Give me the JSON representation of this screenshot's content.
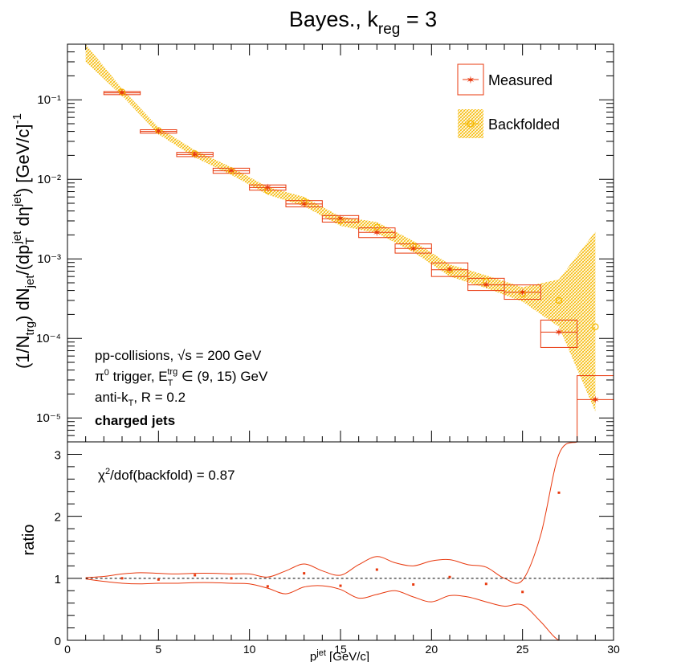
{
  "title": {
    "main": "Bayes., k",
    "sub": "reg",
    "rest": " = 3"
  },
  "y_axis_label": "(1/N_trg) dN_jet/(dp_T^jet dη^jet) [GeV/c]^-1",
  "x_axis_label": "p^jet [GeV/c]",
  "ratio_label": "ratio",
  "legend": [
    {
      "label": "Measured",
      "marker": "star",
      "color": "#e8380d"
    },
    {
      "label": "Backfolded",
      "marker": "circle",
      "color": "#f5b800"
    }
  ],
  "annotations": [
    "pp-collisions, √s = 200 GeV",
    "π0 trigger, E_T^trg ∈ (9, 15) GeV",
    "anti-k_T, R = 0.2",
    "charged jets"
  ],
  "chi2_label": "χ2/dof(backfold) = 0.87",
  "colors": {
    "measured": "#e8380d",
    "backfolded": "#f5b800",
    "axis": "#000000"
  },
  "chart_data": [
    {
      "type": "scatter",
      "panel": "spectrum",
      "title": "Bayes., k_reg = 3",
      "xlabel": "p_T^jet [GeV/c]",
      "ylabel": "(1/N_trg) dN_jet/(dp_T^jet dη^jet) [GeV/c]^-1",
      "xlim": [
        0,
        30
      ],
      "ylim": [
        5e-06,
        0.5
      ],
      "yscale": "log",
      "y_ticks": [
        1e-05,
        0.0001,
        0.001,
        0.01,
        0.1
      ],
      "y_tick_labels": [
        "10⁻⁵",
        "10⁻⁴",
        "10⁻³",
        "10⁻²",
        "10⁻¹"
      ],
      "series": [
        {
          "name": "Measured",
          "x": [
            3,
            5,
            7,
            9,
            11,
            13,
            15,
            17,
            19,
            21,
            23,
            25,
            27,
            29
          ],
          "x_err": [
            1,
            1,
            1,
            1,
            1,
            1,
            1,
            1,
            1,
            1,
            1,
            1,
            1,
            1
          ],
          "y": [
            0.122,
            0.04,
            0.0205,
            0.0128,
            0.0079,
            0.0049,
            0.0032,
            0.00215,
            0.00135,
            0.00073,
            0.00047,
            0.00038,
            0.00012,
            1.7e-05
          ],
          "y_low": [
            0.116,
            0.038,
            0.0193,
            0.0119,
            0.0073,
            0.0045,
            0.0029,
            0.00185,
            0.00118,
            0.0006,
            0.0004,
            0.00031,
            7.7e-05,
            3e-06
          ],
          "y_high": [
            0.127,
            0.042,
            0.0218,
            0.0138,
            0.0085,
            0.0054,
            0.0035,
            0.00245,
            0.00154,
            0.00089,
            0.00057,
            0.00047,
            0.00017,
            3.4e-05
          ]
        },
        {
          "name": "Backfolded",
          "x": [
            1,
            3,
            5,
            7,
            9,
            11,
            13,
            15,
            17,
            19,
            21,
            23,
            25,
            27,
            29
          ],
          "y": [
            0.4,
            0.125,
            0.041,
            0.021,
            0.0128,
            0.0072,
            0.0053,
            0.003,
            0.0025,
            0.00145,
            0.00072,
            0.00052,
            0.00036,
            0.0003,
            0.00014
          ],
          "band_low": [
            0.3,
            0.112,
            0.037,
            0.0188,
            0.0114,
            0.0064,
            0.0046,
            0.0026,
            0.0021,
            0.00122,
            0.0006,
            0.00043,
            0.00029,
            0.00014,
            1.2e-05
          ],
          "band_high": [
            0.5,
            0.138,
            0.045,
            0.0232,
            0.0142,
            0.008,
            0.006,
            0.0034,
            0.0029,
            0.00168,
            0.00085,
            0.00062,
            0.00044,
            0.00055,
            0.0022
          ]
        }
      ]
    },
    {
      "type": "scatter",
      "panel": "ratio",
      "xlabel": "p_T^jet [GeV/c]",
      "ylabel": "ratio",
      "xlim": [
        0,
        30
      ],
      "ylim": [
        0,
        3.2
      ],
      "x_ticks": [
        0,
        5,
        10,
        15,
        20,
        25,
        30
      ],
      "y_ticks": [
        0,
        1,
        2,
        3
      ],
      "reference_line": 1,
      "points": {
        "x": [
          3,
          5,
          7,
          9,
          11,
          13,
          15,
          17,
          19,
          21,
          23,
          25,
          27
        ],
        "y": [
          1.0,
          0.98,
          1.05,
          1.0,
          0.87,
          1.08,
          0.88,
          1.14,
          0.9,
          1.02,
          0.91,
          0.78,
          2.38
        ]
      },
      "band": {
        "x": [
          1,
          2,
          3,
          4,
          5,
          6,
          7,
          8,
          9,
          10,
          11,
          12,
          13,
          14,
          15,
          16,
          17,
          18,
          19,
          20,
          21,
          22,
          23,
          24,
          25,
          26,
          27,
          28,
          28.5,
          29,
          29.3
        ],
        "low": [
          0.99,
          0.95,
          0.92,
          0.91,
          0.92,
          0.92,
          0.93,
          0.93,
          0.92,
          0.91,
          0.84,
          0.75,
          0.86,
          0.88,
          0.82,
          0.68,
          0.74,
          0.8,
          0.7,
          0.62,
          0.72,
          0.7,
          0.62,
          0.55,
          0.57,
          0.3,
          0.0,
          0.0,
          0.0,
          0.0,
          0.0
        ],
        "high": [
          1.01,
          1.03,
          1.07,
          1.09,
          1.08,
          1.07,
          1.08,
          1.08,
          1.07,
          1.07,
          1.02,
          1.12,
          1.23,
          1.12,
          1.05,
          1.22,
          1.35,
          1.25,
          1.2,
          1.28,
          1.3,
          1.22,
          1.18,
          1.0,
          0.97,
          1.7,
          3.0,
          3.2,
          3.2,
          3.2,
          3.2
        ]
      }
    }
  ]
}
